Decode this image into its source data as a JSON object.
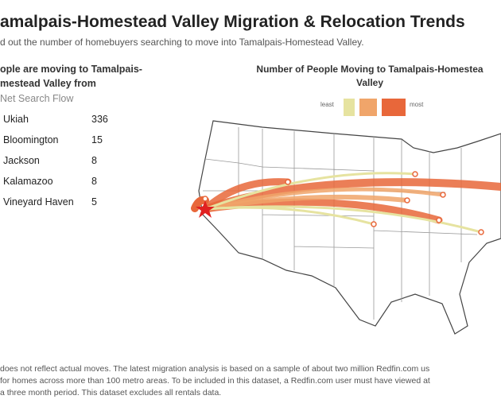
{
  "header": {
    "title": "amalpais-Homestead Valley Migration & Relocation Trends",
    "subtitle": "d out the number of homebuyers searching to move into Tamalpais-Homestead Valley."
  },
  "table": {
    "title_lines": [
      "ople are moving to Tamalpais-",
      "mestead Valley from"
    ],
    "column": "Net Search Flow",
    "rows": [
      [
        "Ukiah",
        336
      ],
      [
        "Bloomington",
        15
      ],
      [
        "Jackson",
        8
      ],
      [
        "Kalamazoo",
        8
      ],
      [
        "Vineyard Haven",
        5
      ]
    ]
  },
  "map": {
    "title_lines": [
      "Number of People Moving to Tamalpais-Homestea",
      "Valley"
    ],
    "legend": {
      "low": "least",
      "high": "most"
    }
  },
  "footnote": [
    "does not reflect actual moves. The latest migration analysis is based on a sample of about two million Redfin.com us",
    " for homes across more than 100 metro areas. To be included in this dataset, a Redfin.com user must have viewed at",
    "a three month period. This dataset excludes all rentals data."
  ]
}
